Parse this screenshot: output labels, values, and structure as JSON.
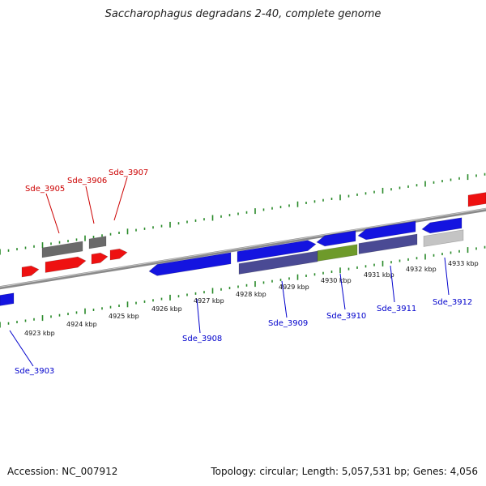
{
  "title": "Saccharophagus degradans 2-40, complete genome",
  "footer": {
    "accession": "Accession: NC_007912",
    "summary": "Topology: circular; Length: 5,057,531 bp; Genes: 4,056"
  },
  "colors": {
    "backbone": "#888888",
    "tick": "#2a8a2a",
    "forward_label": "#cc0000",
    "reverse_label": "#0000cc",
    "red_gene": "#ee1111",
    "dark_gray_gene": "#6a6a6a",
    "blue_gene": "#1414e0",
    "slate_gene": "#4a4a94",
    "olive_gene": "#6e9a2a",
    "light_gray_gene": "#c4c4c4"
  },
  "scale_labels": [
    "4923 kbp",
    "4924 kbp",
    "4925 kbp",
    "4926 kbp",
    "4927 kbp",
    "4928 kbp",
    "4929 kbp",
    "4930 kbp",
    "4931 kbp",
    "4932 kbp",
    "4933 kbp"
  ],
  "gene_labels": {
    "sde_3905": "Sde_3905",
    "sde_3906": "Sde_3906",
    "sde_3907": "Sde_3907",
    "sde_3903": "Sde_3903",
    "sde_3908": "Sde_3908",
    "sde_3909": "Sde_3909",
    "sde_3910": "Sde_3910",
    "sde_3911": "Sde_3911",
    "sde_3912": "Sde_3912"
  }
}
